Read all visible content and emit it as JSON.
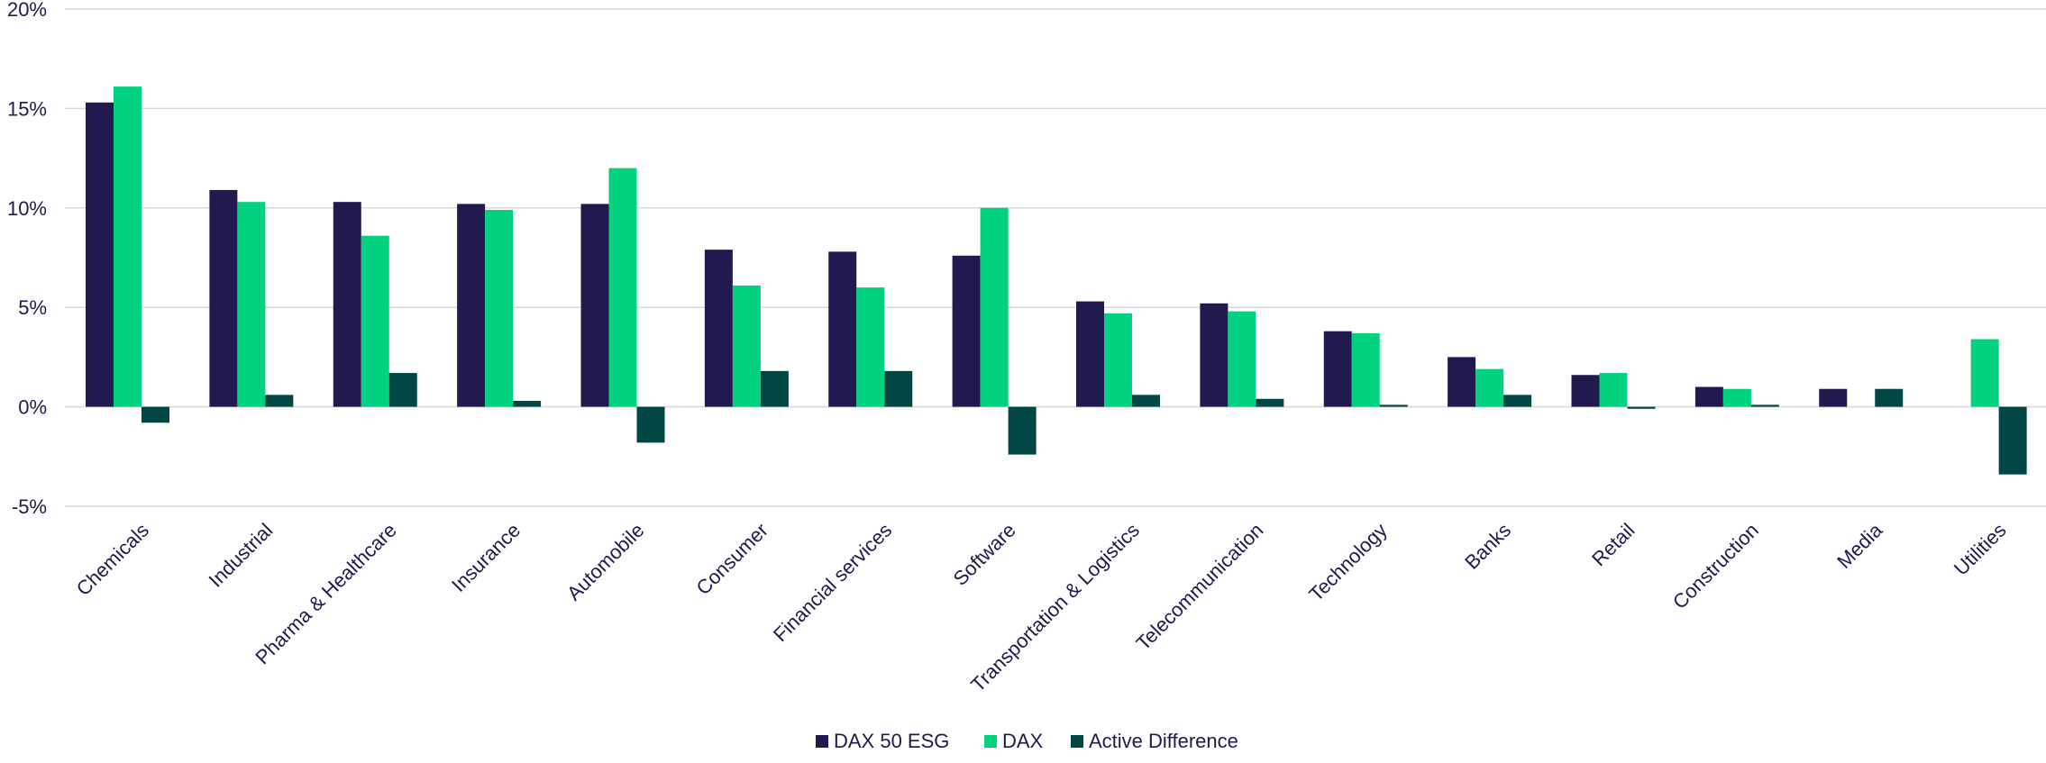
{
  "chart_data": {
    "type": "bar",
    "categories": [
      "Chemicals",
      "Industrial",
      "Pharma & Healthcare",
      "Insurance",
      "Automobile",
      "Consumer",
      "Financial services",
      "Software",
      "Transportation & Logistics",
      "Telecommunication",
      "Technology",
      "Banks",
      "Retail",
      "Construction",
      "Media",
      "Utilities"
    ],
    "series": [
      {
        "name": "DAX 50 ESG",
        "color": "#201a4f",
        "values": [
          15.3,
          10.9,
          10.3,
          10.2,
          10.2,
          7.9,
          7.8,
          7.6,
          5.3,
          5.2,
          3.8,
          2.5,
          1.6,
          1.0,
          0.9,
          0.0
        ]
      },
      {
        "name": "DAX",
        "color": "#00d27f",
        "values": [
          16.1,
          10.3,
          8.6,
          9.9,
          12.0,
          6.1,
          6.0,
          10.0,
          4.7,
          4.8,
          3.7,
          1.9,
          1.7,
          0.9,
          0.0,
          3.4
        ]
      },
      {
        "name": "Active Difference",
        "color": "#004745",
        "values": [
          -0.8,
          0.6,
          1.7,
          0.3,
          -1.8,
          1.8,
          1.8,
          -2.4,
          0.6,
          0.4,
          0.1,
          0.6,
          -0.1,
          0.1,
          0.9,
          -3.4
        ]
      }
    ],
    "yticks": [
      "-5%",
      "0%",
      "5%",
      "10%",
      "15%",
      "20%"
    ],
    "ytick_values": [
      -5,
      0,
      5,
      10,
      15,
      20
    ],
    "ylim": [
      -5,
      20
    ],
    "grid": true,
    "legend_position": "bottom-center",
    "title": "",
    "xlabel": "",
    "ylabel": ""
  }
}
